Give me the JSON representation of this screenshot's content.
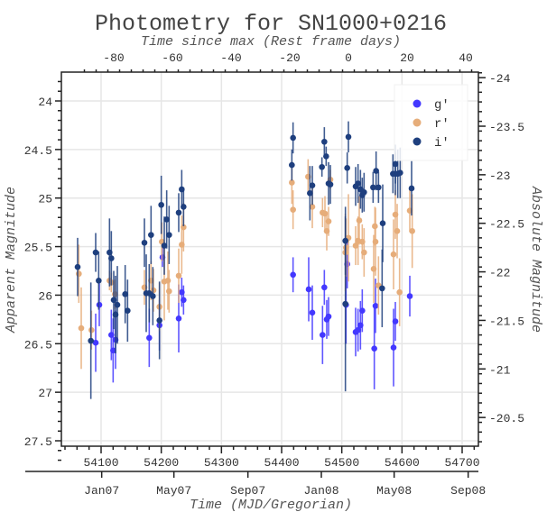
{
  "chart_data": {
    "type": "scatter",
    "title": "Photometry for SN1000+0216",
    "top_xlabel": "Time since max (Rest frame days)",
    "xlabel": "Time (MJD/Gregorian)",
    "ylabel": "Apparent Magnitude",
    "right_ylabel": "Absolute Magnitude",
    "xlim": [
      54034,
      54727
    ],
    "ylim": [
      27.76,
      23.7
    ],
    "grid": true,
    "legend_position": "top-right",
    "x_ticks": [
      54100,
      54200,
      54300,
      54400,
      54500,
      54600,
      54700
    ],
    "y_ticks": [
      24,
      24.5,
      25,
      25.5,
      26,
      26.5,
      27,
      27.5
    ],
    "y_tick_labels": [
      "24",
      "24.5",
      "25",
      "25.5",
      "26",
      "26.5",
      "27",
      "27.5"
    ],
    "top_ticks": [
      -80,
      -60,
      -40,
      -20,
      0,
      20,
      40
    ],
    "top_tick_labels": [
      "-80",
      "-60",
      "-40",
      "-20",
      "0",
      "20",
      "40"
    ],
    "rest_zero_mjd": 54511,
    "mjd_per_rest_day": 4.875,
    "abs_mag_offset": 47.76,
    "right_ticks": [
      -24,
      -23.5,
      -23,
      -22.5,
      -22,
      -21.5,
      -21,
      -20.5
    ],
    "right_tick_labels": [
      "-24",
      "-23.5",
      "-23",
      "-22.5",
      "-22",
      "-21.5",
      "-21",
      "-20.5"
    ],
    "date_ticks": [
      {
        "mjd": 54101,
        "label": "Jan07"
      },
      {
        "mjd": 54221,
        "label": "May07"
      },
      {
        "mjd": 54344,
        "label": "Sep07"
      },
      {
        "mjd": 54466,
        "label": "Jan08"
      },
      {
        "mjd": 54587,
        "label": "May08"
      },
      {
        "mjd": 54710,
        "label": "Sep08"
      }
    ],
    "series": [
      {
        "name": "g'",
        "color": "#4338ff",
        "points": [
          [
            54091,
            26.49,
            0.3
          ],
          [
            54097,
            26.1,
            0.22
          ],
          [
            54117,
            26.41,
            0.26
          ],
          [
            54120,
            26.57,
            0.33
          ],
          [
            54124,
            26.46,
            0.3
          ],
          [
            54180,
            26.44,
            0.3
          ],
          [
            54197,
            26.31,
            0.26
          ],
          [
            54202,
            25.61,
            0.1
          ],
          [
            54229,
            26.24,
            0.35
          ],
          [
            54234,
            25.97,
            0.15
          ],
          [
            54237,
            26.05,
            0.15
          ],
          [
            54419,
            25.79,
            0.18
          ],
          [
            54445,
            25.94,
            0.33
          ],
          [
            54451,
            26.18,
            0.28
          ],
          [
            54468,
            26.41,
            0.3
          ],
          [
            54471,
            25.92,
            0.18
          ],
          [
            54475,
            26.25,
            0.2
          ],
          [
            54478,
            26.22,
            0.2
          ],
          [
            54509,
            25.68,
            0.25
          ],
          [
            54507,
            26.1,
            0.4
          ],
          [
            54523,
            26.38,
            0.25
          ],
          [
            54527,
            26.36,
            0.22
          ],
          [
            54531,
            26.31,
            0.25
          ],
          [
            54534,
            26.16,
            0.22
          ],
          [
            54554,
            26.55,
            0.42
          ],
          [
            54556,
            26.11,
            0.28
          ],
          [
            54586,
            26.54,
            0.4
          ],
          [
            54589,
            26.27,
            0.2
          ],
          [
            54613,
            26.01,
            0.21
          ]
        ]
      },
      {
        "name": "r'",
        "color": "#e6ad7a",
        "points": [
          [
            54063,
            25.78,
            0.3
          ],
          [
            54067,
            26.34,
            0.42
          ],
          [
            54084,
            26.36,
            0.2
          ],
          [
            54114,
            25.85,
            0.1
          ],
          [
            54117,
            25.87,
            0.1
          ],
          [
            54123,
            25.99,
            0.15
          ],
          [
            54172,
            25.92,
            0.18
          ],
          [
            54183,
            25.85,
            0.2
          ],
          [
            54187,
            25.95,
            0.22
          ],
          [
            54197,
            26.12,
            0.25
          ],
          [
            54201,
            25.45,
            0.2
          ],
          [
            54205,
            25.86,
            0.4
          ],
          [
            54211,
            25.85,
            0.3
          ],
          [
            54213,
            25.96,
            0.22
          ],
          [
            54229,
            25.8,
            0.28
          ],
          [
            54234,
            25.48,
            0.3
          ],
          [
            54237,
            25.3,
            0.25
          ],
          [
            54417,
            24.84,
            0.22
          ],
          [
            54419,
            25.12,
            0.2
          ],
          [
            54444,
            24.78,
            0.18
          ],
          [
            54451,
            25.09,
            0.22
          ],
          [
            54468,
            25.15,
            0.15
          ],
          [
            54472,
            25.16,
            0.18
          ],
          [
            54475,
            25.34,
            0.2
          ],
          [
            54478,
            25.24,
            0.15
          ],
          [
            54481,
            24.81,
            0.1
          ],
          [
            54506,
            25.56,
            0.4
          ],
          [
            54507,
            25.51,
            0.3
          ],
          [
            54511,
            25.41,
            0.45
          ],
          [
            54523,
            25.49,
            0.2
          ],
          [
            54527,
            25.44,
            0.25
          ],
          [
            54529,
            25.23,
            0.25
          ],
          [
            54534,
            25.45,
            0.18
          ],
          [
            54537,
            25.56,
            0.25
          ],
          [
            54553,
            25.73,
            0.35
          ],
          [
            54555,
            25.29,
            0.2
          ],
          [
            54556,
            25.45,
            0.35
          ],
          [
            54561,
            25.9,
            0.3
          ],
          [
            54586,
            25.58,
            0.36
          ],
          [
            54589,
            25.17,
            0.25
          ],
          [
            54592,
            25.34,
            0.28
          ],
          [
            54596,
            25.97,
            0.35
          ],
          [
            54613,
            25.13,
            0.22
          ],
          [
            54617,
            25.34,
            0.38
          ]
        ]
      },
      {
        "name": "i'",
        "color": "#1e3f7e",
        "points": [
          [
            54061,
            25.71,
            0.3
          ],
          [
            54083,
            26.47,
            0.6
          ],
          [
            54091,
            25.56,
            0.2
          ],
          [
            54096,
            25.85,
            0.3
          ],
          [
            54114,
            25.56,
            0.35
          ],
          [
            54117,
            25.62,
            0.28
          ],
          [
            54121,
            26.05,
            0.3
          ],
          [
            54124,
            26.2,
            0.4
          ],
          [
            54127,
            26.1,
            0.4
          ],
          [
            54140,
            25.99,
            0.3
          ],
          [
            54144,
            26.16,
            0.32
          ],
          [
            54172,
            25.46,
            0.25
          ],
          [
            54175,
            25.98,
            0.4
          ],
          [
            54180,
            25.98,
            0.3
          ],
          [
            54183,
            25.38,
            0.3
          ],
          [
            54186,
            26.01,
            0.3
          ],
          [
            54197,
            26.26,
            0.4
          ],
          [
            54200,
            25.07,
            0.3
          ],
          [
            54205,
            25.49,
            0.3
          ],
          [
            54209,
            25.22,
            0.3
          ],
          [
            54213,
            25.38,
            0.3
          ],
          [
            54229,
            25.15,
            0.2
          ],
          [
            54234,
            24.91,
            0.2
          ],
          [
            54237,
            25.09,
            0.2
          ],
          [
            54419,
            24.38,
            0.16
          ],
          [
            54417,
            24.66,
            0.16
          ],
          [
            54447,
            24.95,
            0.28
          ],
          [
            54451,
            24.87,
            0.2
          ],
          [
            54471,
            24.42,
            0.15
          ],
          [
            54474,
            24.57,
            0.1
          ],
          [
            54467,
            24.68,
            0.1
          ],
          [
            54478,
            24.85,
            0.22
          ],
          [
            54481,
            24.86,
            0.2
          ],
          [
            54511,
            24.37,
            0.16
          ],
          [
            54509,
            24.69,
            0.16
          ],
          [
            54506,
            25.44,
            0.35
          ],
          [
            54506,
            26.09,
            0.9
          ],
          [
            54523,
            24.88,
            0.2
          ],
          [
            54527,
            24.85,
            0.2
          ],
          [
            54531,
            24.91,
            0.2
          ],
          [
            54534,
            24.97,
            0.18
          ],
          [
            54537,
            24.94,
            0.2
          ],
          [
            54552,
            24.89,
            0.16
          ],
          [
            54557,
            24.72,
            0.2
          ],
          [
            54561,
            24.89,
            0.16
          ],
          [
            54568,
            25.26,
            0.4
          ],
          [
            54567,
            25.93,
            0.4
          ],
          [
            54585,
            24.75,
            0.2
          ],
          [
            54589,
            24.65,
            0.2
          ],
          [
            54589,
            24.75,
            0.22
          ],
          [
            54593,
            24.75,
            0.25
          ],
          [
            54597,
            24.74,
            0.26
          ],
          [
            54616,
            24.9,
            0.28
          ]
        ]
      }
    ]
  }
}
